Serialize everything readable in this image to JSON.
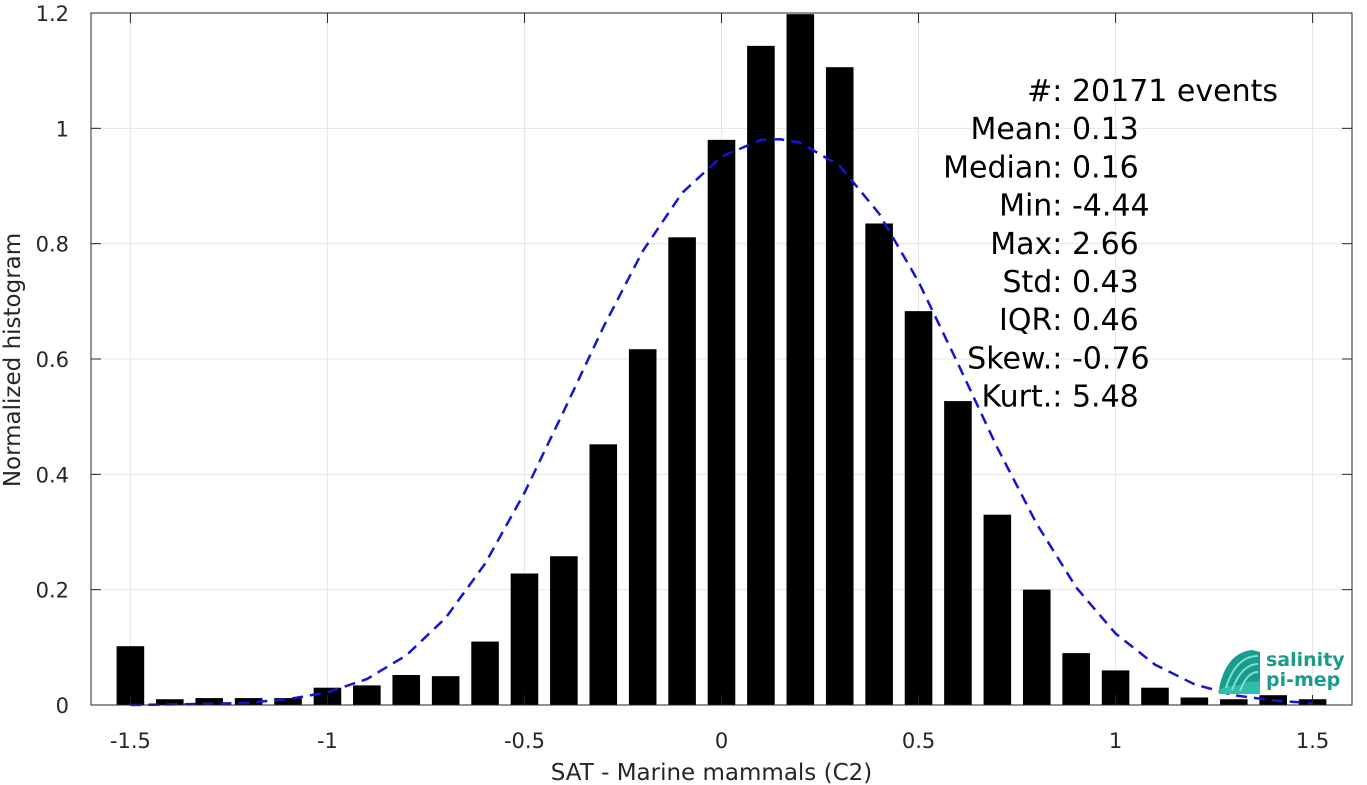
{
  "chart_data": {
    "type": "bar",
    "title": "",
    "xlabel": "SAT - Marine mammals (C2)",
    "ylabel": "Normalized histogram",
    "xlim": [
      -1.6,
      1.6
    ],
    "ylim": [
      0,
      1.2
    ],
    "grid": true,
    "x_ticks": [
      -1.5,
      -1,
      -0.5,
      0,
      0.5,
      1,
      1.5
    ],
    "x_tick_labels": [
      "-1.5",
      "-1",
      "-0.5",
      "0",
      "0.5",
      "1",
      "1.5"
    ],
    "y_ticks": [
      0,
      0.2,
      0.4,
      0.6,
      0.8,
      1,
      1.2
    ],
    "y_tick_labels": [
      "0",
      "0.2",
      "0.4",
      "0.6",
      "0.8",
      "1",
      "1.2"
    ],
    "bar_width": 0.07,
    "bar_color": "#000000",
    "bars": {
      "x": [
        -1.5,
        -1.4,
        -1.3,
        -1.2,
        -1.1,
        -1.0,
        -0.9,
        -0.8,
        -0.7,
        -0.6,
        -0.5,
        -0.4,
        -0.3,
        -0.2,
        -0.1,
        0.0,
        0.1,
        0.2,
        0.3,
        0.4,
        0.5,
        0.6,
        0.7,
        0.8,
        0.9,
        1.0,
        1.1,
        1.2,
        1.3,
        1.4,
        1.5
      ],
      "values": [
        0.102,
        0.01,
        0.012,
        0.012,
        0.012,
        0.03,
        0.034,
        0.052,
        0.05,
        0.11,
        0.228,
        0.258,
        0.452,
        0.617,
        0.811,
        0.98,
        1.143,
        1.198,
        1.106,
        0.835,
        0.683,
        0.527,
        0.33,
        0.2,
        0.09,
        0.06,
        0.03,
        0.013,
        0.01,
        0.017,
        0.01
      ]
    },
    "fit_curve": {
      "style": "dashed",
      "color": "#1414d2",
      "x": [
        -1.5,
        -1.4,
        -1.3,
        -1.2,
        -1.1,
        -1.0,
        -0.9,
        -0.8,
        -0.7,
        -0.6,
        -0.5,
        -0.4,
        -0.3,
        -0.2,
        -0.1,
        0.0,
        0.1,
        0.15,
        0.2,
        0.3,
        0.4,
        0.5,
        0.6,
        0.7,
        0.8,
        0.9,
        1.0,
        1.1,
        1.2,
        1.3,
        1.4,
        1.5
      ],
      "y": [
        0.0,
        0.001,
        0.002,
        0.004,
        0.01,
        0.022,
        0.045,
        0.086,
        0.151,
        0.245,
        0.368,
        0.51,
        0.655,
        0.787,
        0.888,
        0.951,
        0.98,
        0.981,
        0.975,
        0.935,
        0.852,
        0.734,
        0.592,
        0.446,
        0.314,
        0.204,
        0.124,
        0.07,
        0.036,
        0.017,
        0.008,
        0.003
      ]
    },
    "annotations": [
      {
        "label": "#  ",
        "value": ": 20171 events"
      },
      {
        "label": "Mean ",
        "value": ": 0.13"
      },
      {
        "label": "Median ",
        "value": ": 0.16"
      },
      {
        "label": "Min ",
        "value": ": -4.44"
      },
      {
        "label": "Max ",
        "value": ": 2.66"
      },
      {
        "label": "Std ",
        "value": ": 0.43"
      },
      {
        "label": "IQR ",
        "value": ": 0.46"
      },
      {
        "label": "Skew. ",
        "value": ": -0.76"
      },
      {
        "label": "Kurt. ",
        "value": ": 5.48"
      }
    ]
  },
  "logo": {
    "line1": "salinity",
    "line2": "pi-mep",
    "color": "#1a9c8c"
  }
}
